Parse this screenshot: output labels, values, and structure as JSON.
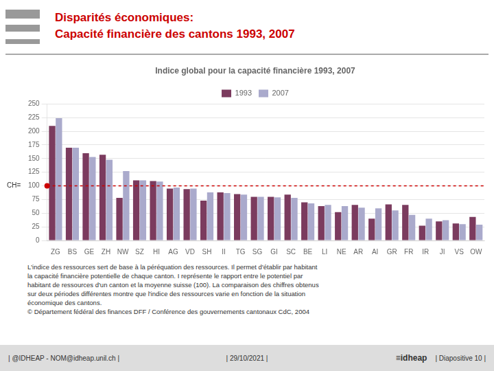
{
  "chart_data": {
    "type": "bar",
    "heading": {
      "lines": [
        "Disparités économiques:",
        "Capacité financière des cantons 1993, 2007"
      ],
      "color": "#CC0000"
    },
    "title": "Indice global pour la capacité financière 1993, 2007",
    "categories": [
      "ZG",
      "BS",
      "GE",
      "ZH",
      "NW",
      "SZ",
      "HI",
      "AG",
      "VD",
      "SH",
      "II",
      "TG",
      "SG",
      "GI",
      "SC",
      "BE",
      "LI",
      "NE",
      "AR",
      "AI",
      "GR",
      "FR",
      "IR",
      "JI",
      "VS",
      "OW"
    ],
    "series": [
      {
        "name": "1993",
        "color": "#7B3B5E",
        "values": [
          210,
          170,
          160,
          157,
          78,
          110,
          109,
          95,
          94,
          73,
          88,
          85,
          80,
          80,
          84,
          70,
          63,
          52,
          65,
          40,
          66,
          65,
          27,
          35,
          31,
          43
        ]
      },
      {
        "name": "2007",
        "color": "#AAAACC",
        "values": [
          224,
          170,
          153,
          148,
          127,
          110,
          108,
          97,
          95,
          88,
          87,
          84,
          80,
          79,
          78,
          68,
          65,
          63,
          60,
          59,
          55,
          47,
          40,
          37,
          30,
          29
        ]
      }
    ],
    "reference_line": {
      "value": 100,
      "label": "CH=",
      "color": "#CC0000"
    },
    "ylim": [
      0,
      250
    ],
    "yticks": [
      0,
      25,
      50,
      75,
      100,
      125,
      150,
      175,
      200,
      225,
      250
    ],
    "grid": true,
    "legend": "top",
    "footnotes": [
      "L'indice des ressources sert de base à la péréquation des ressources. Il permet d'établir par habitant",
      "la capacité financière potentielle de chaque canton. I représente le rapport entre le potentiel par",
      "habitant de ressources d'un canton et la moyenne suisse (100). La comparaison des chiffres obtenus",
      "sur deux périodes différentes montre que l'indice des ressources varie en fonction de la situation",
      "économique des cantons.",
      "© Département fédéral des finances DFF / Conférence des gouvernements cantonaux CdC, 2004"
    ],
    "footer": {
      "left": "| @IDHEAP - NOM@idheap.unil.ch |",
      "center": "| 29/10/2021 |",
      "right": "| Diapositive 10 |",
      "logo": "≡idheap"
    }
  }
}
